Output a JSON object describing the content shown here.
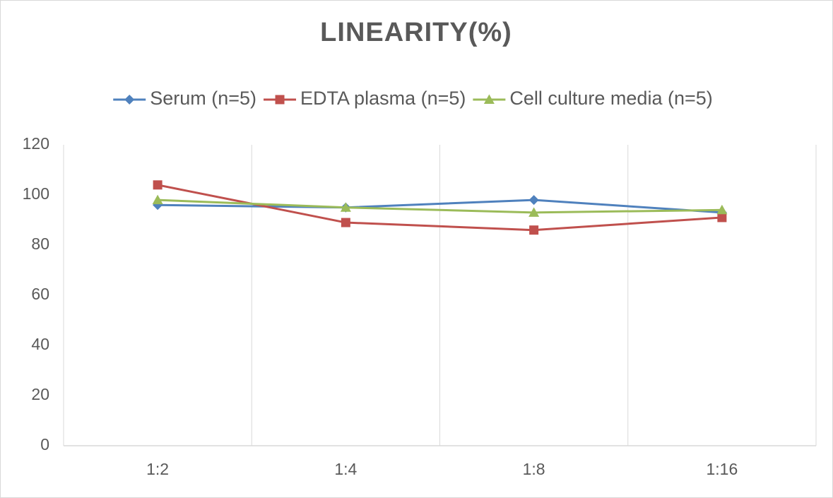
{
  "chart_data": {
    "type": "line",
    "title": "LINEARITY(%)",
    "categories": [
      "1:2",
      "1:4",
      "1:8",
      "1:16"
    ],
    "series": [
      {
        "name": "Serum (n=5)",
        "color": "#4f81bd",
        "marker": "diamond",
        "values": [
          96,
          95,
          98,
          93
        ]
      },
      {
        "name": "EDTA plasma (n=5)",
        "color": "#c0504d",
        "marker": "square",
        "values": [
          104,
          89,
          86,
          91
        ]
      },
      {
        "name": "Cell culture media (n=5)",
        "color": "#9bbb59",
        "marker": "triangle",
        "values": [
          98,
          95,
          93,
          94
        ]
      }
    ],
    "ylim": [
      0,
      120
    ],
    "yticks": [
      0,
      20,
      40,
      60,
      80,
      100,
      120
    ],
    "grid": "vertical",
    "legend": "top"
  }
}
